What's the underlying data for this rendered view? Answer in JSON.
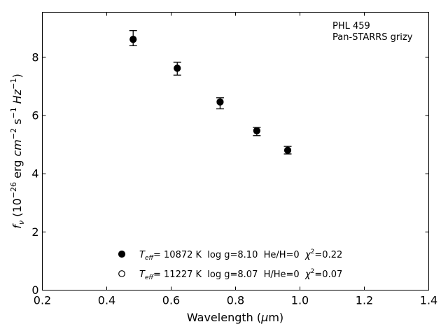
{
  "chart_data": {
    "type": "scatter",
    "title": "",
    "xlabel": "Wavelength",
    "xlabel_unit_prefix": "(",
    "xlabel_unit_mu": "μ",
    "xlabel_unit_suffix": "m)",
    "ylabel_prefix": "f",
    "ylabel_sub": "ν",
    "ylabel_unit_open": " (10",
    "ylabel_exp_1": "−26",
    "ylabel_unit_mid": " erg ",
    "ylabel_cm": "cm",
    "ylabel_exp_2": "−2",
    "ylabel_s": " s",
    "ylabel_exp_3": "−1",
    "ylabel_hz": " Hz",
    "ylabel_exp_4": "−1",
    "ylabel_close": ")",
    "xlim": [
      0.2,
      1.4
    ],
    "ylim": [
      0,
      9.55
    ],
    "xticks": [
      0.2,
      0.4,
      0.6,
      0.8,
      1.0,
      1.2,
      1.4
    ],
    "xtick_labels": [
      "0.2",
      "0.4",
      "0.6",
      "0.8",
      "1.0",
      "1.2",
      "1.4"
    ],
    "yticks": [
      0,
      2,
      4,
      6,
      8
    ],
    "ytick_labels": [
      "0",
      "2",
      "4",
      "6",
      "8"
    ],
    "grid": false,
    "annotation_lines": [
      "PHL 459",
      "Pan-STARRS grizy"
    ],
    "observed": {
      "x": [
        0.482,
        0.619,
        0.752,
        0.866,
        0.962
      ],
      "y": [
        8.66,
        7.61,
        6.42,
        5.45,
        4.81
      ],
      "yerr": [
        0.26,
        0.22,
        0.19,
        0.14,
        0.13
      ]
    },
    "series": [
      {
        "marker": "filled-circle",
        "x": [
          0.482,
          0.619,
          0.752,
          0.866,
          0.962
        ],
        "y": [
          8.62,
          7.63,
          6.47,
          5.48,
          4.81
        ],
        "legend": {
          "t": "T",
          "sub": "eff",
          "text": "= 10872 K  log g=8.10  He/H=0  ",
          "chi": "χ",
          "sup": "2",
          "chi_value": "=0.22"
        }
      },
      {
        "marker": "open-circle",
        "x": [
          0.482,
          0.619,
          0.752,
          0.866,
          0.962
        ],
        "y": [
          8.61,
          7.62,
          6.46,
          5.47,
          4.8
        ],
        "legend": {
          "t": "T",
          "sub": "eff",
          "text": "= 11227 K  log g=8.07  H/He=0  ",
          "chi": "χ",
          "sup": "2",
          "chi_value": "=0.07"
        }
      }
    ],
    "legend_placement": "lower-center"
  }
}
